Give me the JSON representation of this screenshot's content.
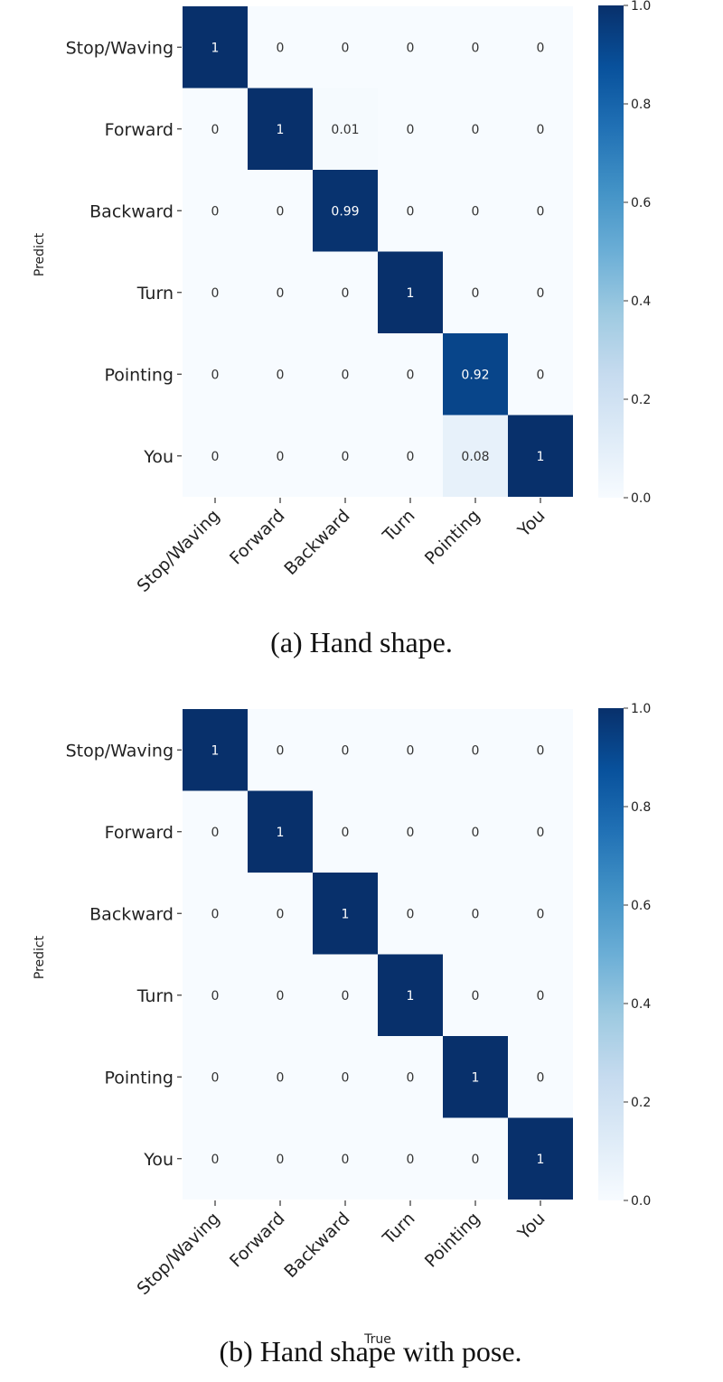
{
  "chart_data": [
    {
      "type": "heatmap",
      "id": "a",
      "caption": "(a)   Hand shape.",
      "xlabel": "",
      "ylabel": "Predict",
      "x_categories": [
        "Stop/Waving",
        "Forward",
        "Backward",
        "Turn",
        "Pointing",
        "You"
      ],
      "y_categories": [
        "Stop/Waving",
        "Forward",
        "Backward",
        "Turn",
        "Pointing",
        "You"
      ],
      "values": [
        [
          "1",
          "0",
          "0",
          "0",
          "0",
          "0"
        ],
        [
          "0",
          "1",
          "0.01",
          "0",
          "0",
          "0"
        ],
        [
          "0",
          "0",
          "0.99",
          "0",
          "0",
          "0"
        ],
        [
          "0",
          "0",
          "0",
          "1",
          "0",
          "0"
        ],
        [
          "0",
          "0",
          "0",
          "0",
          "0.92",
          "0"
        ],
        [
          "0",
          "0",
          "0",
          "0",
          "0.08",
          "1"
        ]
      ],
      "colorbar": {
        "range": [
          0.0,
          1.0
        ],
        "ticks": [
          "0.0",
          "0.2",
          "0.4",
          "0.6",
          "0.8",
          "1.0"
        ]
      },
      "colormap": "Blues"
    },
    {
      "type": "heatmap",
      "id": "b",
      "caption": "(b)   Hand shape with pose.",
      "xlabel": "True",
      "ylabel": "Predict",
      "x_categories": [
        "Stop/Waving",
        "Forward",
        "Backward",
        "Turn",
        "Pointing",
        "You"
      ],
      "y_categories": [
        "Stop/Waving",
        "Forward",
        "Backward",
        "Turn",
        "Pointing",
        "You"
      ],
      "values": [
        [
          "1",
          "0",
          "0",
          "0",
          "0",
          "0"
        ],
        [
          "0",
          "1",
          "0",
          "0",
          "0",
          "0"
        ],
        [
          "0",
          "0",
          "1",
          "0",
          "0",
          "0"
        ],
        [
          "0",
          "0",
          "0",
          "1",
          "0",
          "0"
        ],
        [
          "0",
          "0",
          "0",
          "0",
          "1",
          "0"
        ],
        [
          "0",
          "0",
          "0",
          "0",
          "0",
          "1"
        ]
      ],
      "colorbar": {
        "range": [
          0.0,
          1.0
        ],
        "ticks": [
          "0.0",
          "0.2",
          "0.4",
          "0.6",
          "0.8",
          "1.0"
        ]
      },
      "colormap": "Blues"
    }
  ]
}
